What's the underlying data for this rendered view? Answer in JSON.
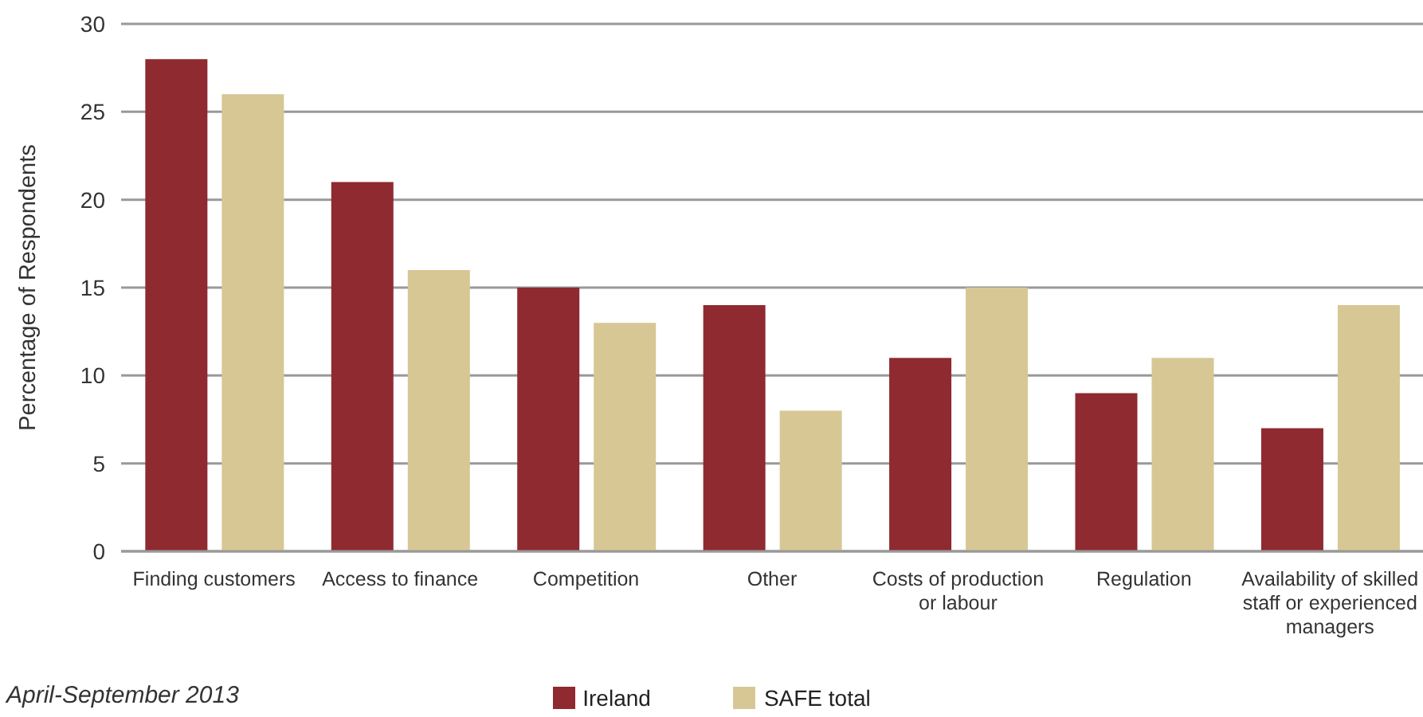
{
  "chart_data": {
    "type": "bar",
    "ylabel": "Percentage of Respondents",
    "annotations": [
      "April-September 2013"
    ],
    "categories": [
      "Finding customers",
      "Access to finance",
      "Competition",
      "Other",
      "Costs of production or labour",
      "Regulation",
      "Availability of skilled staff or experienced managers"
    ],
    "series": [
      {
        "name": "Ireland",
        "color": "#8e2a30",
        "values": [
          28,
          21,
          15,
          14,
          11,
          9,
          7
        ]
      },
      {
        "name": "SAFE total",
        "color": "#d6c795",
        "values": [
          26,
          16,
          13,
          8,
          15,
          11,
          14
        ]
      }
    ],
    "ylim": [
      0,
      30
    ],
    "yticks": [
      0,
      5,
      10,
      15,
      20,
      25,
      30
    ],
    "grid": "y",
    "legend": "bottom"
  }
}
